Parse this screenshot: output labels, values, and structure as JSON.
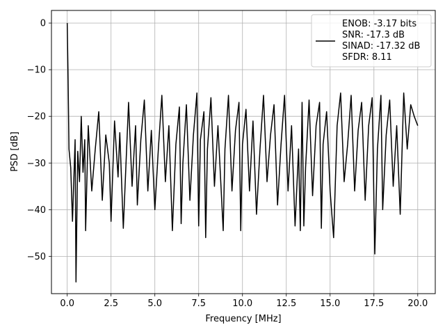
{
  "chart_data": {
    "type": "line",
    "xlabel": "Frequency [MHz]",
    "ylabel": "PSD [dB]",
    "xlim": [
      -0.9,
      21.0
    ],
    "ylim": [
      -58.0,
      2.7
    ],
    "xticks": [
      0.0,
      2.5,
      5.0,
      7.5,
      10.0,
      12.5,
      15.0,
      17.5,
      20.0
    ],
    "xtick_labels": [
      "0.0",
      "2.5",
      "5.0",
      "7.5",
      "10.0",
      "12.5",
      "15.0",
      "17.5",
      "20.0"
    ],
    "yticks": [
      0,
      -10,
      -20,
      -30,
      -40,
      -50
    ],
    "ytick_labels": [
      "0",
      "−10",
      "−20",
      "−30",
      "−40",
      "−50"
    ],
    "grid": true,
    "legend_position": "top-right",
    "series": [
      {
        "color": "#000000",
        "legend_lines": [
          "ENOB: -3.17 bits",
          "SNR: -17.3 dB",
          "SINAD: -17.32 dB",
          "SFDR: 8.11"
        ],
        "x": [
          0.0,
          0.05,
          0.1,
          0.2,
          0.3,
          0.45,
          0.5,
          0.6,
          0.7,
          0.8,
          0.9,
          1.0,
          1.05,
          1.2,
          1.4,
          1.6,
          1.8,
          2.0,
          2.2,
          2.4,
          2.5,
          2.7,
          2.9,
          3.0,
          3.2,
          3.4,
          3.5,
          3.7,
          3.9,
          4.0,
          4.2,
          4.4,
          4.6,
          4.8,
          5.0,
          5.2,
          5.4,
          5.6,
          5.8,
          6.0,
          6.2,
          6.4,
          6.5,
          6.6,
          6.8,
          7.0,
          7.2,
          7.4,
          7.5,
          7.6,
          7.8,
          7.9,
          8.0,
          8.2,
          8.4,
          8.6,
          8.9,
          9.0,
          9.2,
          9.4,
          9.6,
          9.8,
          9.9,
          10.0,
          10.2,
          10.4,
          10.6,
          10.8,
          11.0,
          11.2,
          11.4,
          11.6,
          11.8,
          12.0,
          12.2,
          12.4,
          12.6,
          12.8,
          13.0,
          13.2,
          13.3,
          13.4,
          13.5,
          13.6,
          13.8,
          14.0,
          14.2,
          14.4,
          14.5,
          14.6,
          14.8,
          15.0,
          15.2,
          15.4,
          15.6,
          15.8,
          16.0,
          16.2,
          16.4,
          16.6,
          16.8,
          17.0,
          17.2,
          17.4,
          17.55,
          17.7,
          17.9,
          18.0,
          18.2,
          18.4,
          18.6,
          18.8,
          19.0,
          19.2,
          19.4,
          19.6,
          19.8,
          20.0
        ],
        "y": [
          0.0,
          -12.0,
          -27.0,
          -31.0,
          -42.5,
          -25.0,
          -55.5,
          -27.5,
          -34.0,
          -20.0,
          -32.0,
          -25.0,
          -44.5,
          -22.0,
          -36.0,
          -27.0,
          -19.0,
          -38.0,
          -24.0,
          -30.0,
          -42.5,
          -21.0,
          -33.0,
          -23.5,
          -44.0,
          -26.0,
          -17.0,
          -35.0,
          -22.0,
          -39.0,
          -25.0,
          -16.5,
          -36.0,
          -23.0,
          -40.0,
          -27.0,
          -15.5,
          -34.0,
          -22.0,
          -44.5,
          -26.0,
          -18.0,
          -43.0,
          -30.0,
          -17.5,
          -38.0,
          -24.0,
          -15.0,
          -43.5,
          -25.0,
          -19.0,
          -46.0,
          -27.0,
          -16.0,
          -35.0,
          -22.0,
          -44.5,
          -27.0,
          -15.5,
          -36.0,
          -23.0,
          -17.0,
          -44.5,
          -26.0,
          -18.5,
          -36.0,
          -21.0,
          -41.0,
          -27.0,
          -15.5,
          -34.0,
          -24.0,
          -17.5,
          -39.0,
          -26.0,
          -15.5,
          -36.0,
          -22.0,
          -43.5,
          -27.0,
          -44.5,
          -17.0,
          -43.5,
          -31.0,
          -16.5,
          -37.0,
          -22.0,
          -17.0,
          -44.0,
          -26.0,
          -19.0,
          -36.0,
          -46.0,
          -22.0,
          -15.0,
          -34.0,
          -26.0,
          -15.5,
          -36.0,
          -23.0,
          -17.0,
          -38.0,
          -22.0,
          -16.0,
          -49.5,
          -27.0,
          -15.5,
          -40.0,
          -24.0,
          -16.5,
          -35.0,
          -22.0,
          -41.0,
          -15.0,
          -27.0,
          -17.5,
          -20.0,
          -22.0
        ]
      }
    ]
  }
}
